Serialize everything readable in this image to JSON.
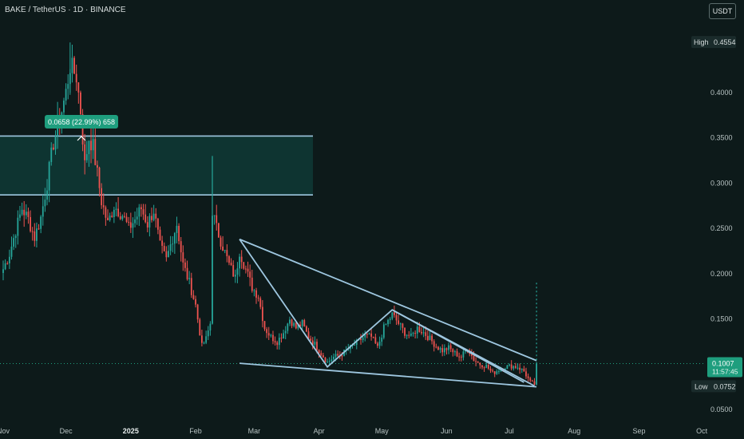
{
  "title": "BAKE / TetherUS · 1D · BINANCE",
  "currency_label": "USDT",
  "colors": {
    "background": "#0d1a1a",
    "up": "#26a69a",
    "down": "#ef5350",
    "drawing": "#9ec7e0",
    "zone_fill": "#0f3a36",
    "price_tag": "#1e9e7e"
  },
  "chart_data": {
    "type": "candlestick",
    "symbol": "BAKE / TetherUS",
    "interval": "1D",
    "exchange": "BINANCE",
    "y_axis": {
      "min": 0.03,
      "max": 0.48,
      "ticks": [
        "0.4000",
        "0.3500",
        "0.3000",
        "0.2500",
        "0.2000",
        "0.1500",
        "0.1000",
        "0.0500"
      ],
      "tick_values": [
        0.4,
        0.35,
        0.3,
        0.25,
        0.2,
        0.15,
        0.1,
        0.05
      ]
    },
    "x_axis": {
      "labels": [
        "Nov",
        "Dec",
        "2025",
        "Feb",
        "Mar",
        "Apr",
        "May",
        "Jun",
        "Jul",
        "Aug",
        "Sep",
        "Oct"
      ],
      "label_days": [
        0,
        30,
        61,
        92,
        120,
        151,
        181,
        212,
        242,
        273,
        304,
        334
      ]
    },
    "high_label": "High",
    "high_value": "0.4554",
    "low_label": "Low",
    "low_value": "0.0752",
    "last_price": "0.1007",
    "last_price_value": 0.1007,
    "countdown": "11:57:45",
    "measure_label": "0.0658 (22.99%) 658",
    "zone": {
      "top": 0.352,
      "bottom": 0.287
    },
    "resistance_line": {
      "start": [
        "2025-02-21",
        0.238
      ],
      "end": [
        "2025-07-13",
        0.104
      ]
    },
    "support_line": {
      "start": [
        "2025-02-21",
        0.101
      ],
      "end": [
        "2025-07-13",
        0.075
      ]
    },
    "zigzag": [
      [
        "2025-02-21",
        0.238
      ],
      [
        "2025-04-04",
        0.097
      ],
      [
        "2025-05-05",
        0.16
      ],
      [
        "2025-07-12",
        0.076
      ]
    ],
    "inner_line": {
      "start": [
        "2025-05-05",
        0.16
      ],
      "end": [
        "2025-07-07",
        0.08
      ]
    },
    "keypoints": [
      [
        "2024-10-31",
        0.205
      ],
      [
        "2024-11-03",
        0.222
      ],
      [
        "2024-11-06",
        0.248
      ],
      [
        "2024-11-09",
        0.272
      ],
      [
        "2024-11-12",
        0.26
      ],
      [
        "2024-11-15",
        0.24
      ],
      [
        "2024-11-18",
        0.262
      ],
      [
        "2024-11-21",
        0.3
      ],
      [
        "2024-11-24",
        0.345
      ],
      [
        "2024-11-27",
        0.37
      ],
      [
        "2024-11-30",
        0.4
      ],
      [
        "2024-12-02",
        0.43
      ],
      [
        "2024-12-05",
        0.418
      ],
      [
        "2024-12-07",
        0.38
      ],
      [
        "2024-12-09",
        0.32
      ],
      [
        "2024-12-11",
        0.35
      ],
      [
        "2024-12-13",
        0.34
      ],
      [
        "2024-12-15",
        0.31
      ],
      [
        "2024-12-17",
        0.28
      ],
      [
        "2024-12-20",
        0.255
      ],
      [
        "2024-12-23",
        0.275
      ],
      [
        "2024-12-27",
        0.265
      ],
      [
        "2024-12-30",
        0.25
      ],
      [
        "2025-01-02",
        0.26
      ],
      [
        "2025-01-05",
        0.272
      ],
      [
        "2025-01-08",
        0.255
      ],
      [
        "2025-01-11",
        0.27
      ],
      [
        "2025-01-14",
        0.23
      ],
      [
        "2025-01-17",
        0.215
      ],
      [
        "2025-01-20",
        0.24
      ],
      [
        "2025-01-22",
        0.255
      ],
      [
        "2025-01-25",
        0.21
      ],
      [
        "2025-01-28",
        0.19
      ],
      [
        "2025-01-31",
        0.165
      ],
      [
        "2025-02-03",
        0.12
      ],
      [
        "2025-02-05",
        0.128
      ],
      [
        "2025-02-07",
        0.145
      ],
      [
        "2025-02-08",
        0.27
      ],
      [
        "2025-02-10",
        0.25
      ],
      [
        "2025-02-13",
        0.23
      ],
      [
        "2025-02-16",
        0.21
      ],
      [
        "2025-02-19",
        0.195
      ],
      [
        "2025-02-21",
        0.225
      ],
      [
        "2025-02-24",
        0.205
      ],
      [
        "2025-02-27",
        0.185
      ],
      [
        "2025-03-02",
        0.175
      ],
      [
        "2025-03-05",
        0.14
      ],
      [
        "2025-03-08",
        0.13
      ],
      [
        "2025-03-11",
        0.125
      ],
      [
        "2025-03-14",
        0.135
      ],
      [
        "2025-03-17",
        0.15
      ],
      [
        "2025-03-20",
        0.14
      ],
      [
        "2025-03-23",
        0.145
      ],
      [
        "2025-03-26",
        0.13
      ],
      [
        "2025-03-29",
        0.122
      ],
      [
        "2025-04-01",
        0.112
      ],
      [
        "2025-04-04",
        0.102
      ],
      [
        "2025-04-07",
        0.108
      ],
      [
        "2025-04-10",
        0.11
      ],
      [
        "2025-04-13",
        0.115
      ],
      [
        "2025-04-16",
        0.12
      ],
      [
        "2025-04-19",
        0.125
      ],
      [
        "2025-04-22",
        0.132
      ],
      [
        "2025-04-25",
        0.13
      ],
      [
        "2025-04-28",
        0.118
      ],
      [
        "2025-05-01",
        0.14
      ],
      [
        "2025-05-05",
        0.155
      ],
      [
        "2025-05-08",
        0.145
      ],
      [
        "2025-05-11",
        0.135
      ],
      [
        "2025-05-14",
        0.13
      ],
      [
        "2025-05-17",
        0.14
      ],
      [
        "2025-05-20",
        0.135
      ],
      [
        "2025-05-23",
        0.128
      ],
      [
        "2025-05-26",
        0.12
      ],
      [
        "2025-05-29",
        0.115
      ],
      [
        "2025-06-01",
        0.118
      ],
      [
        "2025-06-04",
        0.112
      ],
      [
        "2025-06-07",
        0.108
      ],
      [
        "2025-06-10",
        0.118
      ],
      [
        "2025-06-13",
        0.105
      ],
      [
        "2025-06-16",
        0.1
      ],
      [
        "2025-06-19",
        0.098
      ],
      [
        "2025-06-22",
        0.09
      ],
      [
        "2025-06-25",
        0.094
      ],
      [
        "2025-06-28",
        0.097
      ],
      [
        "2025-07-01",
        0.098
      ],
      [
        "2025-07-04",
        0.097
      ],
      [
        "2025-07-07",
        0.092
      ],
      [
        "2025-07-10",
        0.08
      ],
      [
        "2025-07-12",
        0.078
      ],
      [
        "2025-07-13",
        0.1007
      ]
    ]
  }
}
